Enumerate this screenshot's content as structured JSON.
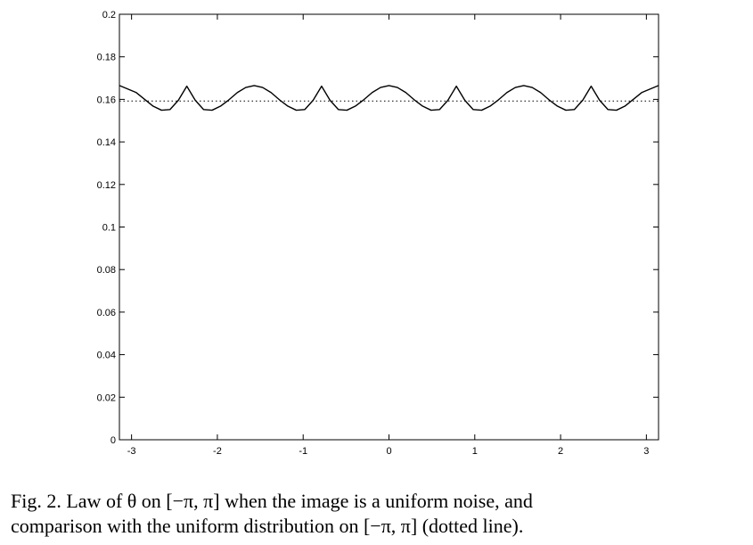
{
  "chart_data": {
    "type": "line",
    "title": "",
    "xlabel": "",
    "ylabel": "",
    "xlim": [
      -3.1416,
      3.1416
    ],
    "ylim": [
      0,
      0.2
    ],
    "xticks": [
      -3,
      -2,
      -1,
      0,
      1,
      2,
      3
    ],
    "xtick_labels": [
      "-3",
      "-2",
      "-1",
      "0",
      "1",
      "2",
      "3"
    ],
    "yticks": [
      0,
      0.02,
      0.04,
      0.06,
      0.08,
      0.1,
      0.12,
      0.14,
      0.16,
      0.18,
      0.2
    ],
    "ytick_labels": [
      "0",
      "0.02",
      "0.04",
      "0.06",
      "0.08",
      "0.1",
      "0.12",
      "0.14",
      "0.16",
      "0.18",
      "0.2"
    ],
    "grid": false,
    "series": [
      {
        "style": "solid",
        "color": "#000000",
        "x": [
          -3.1416,
          -2.9452,
          -2.7489,
          -2.6507,
          -2.5525,
          -2.4543,
          -2.3562,
          -2.258,
          -2.1598,
          -2.0616,
          -1.9635,
          -1.8653,
          -1.7671,
          -1.669,
          -1.5708,
          -1.4726,
          -1.3744,
          -1.2763,
          -1.1781,
          -1.0799,
          -0.9817,
          -0.8836,
          -0.7854,
          -0.6872,
          -0.589,
          -0.4909,
          -0.3927,
          -0.2945,
          -0.1963,
          -0.0982,
          0.0,
          0.0982,
          0.1963,
          0.2945,
          0.3927,
          0.4909,
          0.589,
          0.6872,
          0.7854,
          0.8836,
          0.9817,
          1.0799,
          1.1781,
          1.2763,
          1.3744,
          1.4726,
          1.5708,
          1.669,
          1.7671,
          1.8653,
          1.9635,
          2.0616,
          2.1598,
          2.258,
          2.3562,
          2.4543,
          2.5525,
          2.6507,
          2.7489,
          2.9452,
          3.1416
        ],
        "y": [
          0.1665,
          0.1632,
          0.1568,
          0.1549,
          0.1552,
          0.1596,
          0.1662,
          0.1596,
          0.1552,
          0.1549,
          0.1568,
          0.1598,
          0.1632,
          0.1656,
          0.1665,
          0.1656,
          0.1632,
          0.1598,
          0.1568,
          0.1549,
          0.1552,
          0.1596,
          0.1662,
          0.1596,
          0.1552,
          0.1549,
          0.1568,
          0.1598,
          0.1632,
          0.1656,
          0.1665,
          0.1656,
          0.1632,
          0.1598,
          0.1568,
          0.1549,
          0.1552,
          0.1596,
          0.1662,
          0.1596,
          0.1552,
          0.1549,
          0.1568,
          0.1598,
          0.1632,
          0.1656,
          0.1665,
          0.1656,
          0.1632,
          0.1598,
          0.1568,
          0.1549,
          0.1552,
          0.1596,
          0.1662,
          0.1596,
          0.1552,
          0.1549,
          0.1568,
          0.1632,
          0.1665
        ]
      },
      {
        "style": "dotted",
        "color": "#000000",
        "x": [
          -3.1416,
          3.1416
        ],
        "y": [
          0.1592,
          0.1592
        ]
      }
    ]
  },
  "caption": {
    "line1": "Fig. 2.  Law of θ on [−π, π] when the image is a uniform noise, and",
    "line2": "comparison with the uniform distribution on [−π, π] (dotted line)."
  }
}
